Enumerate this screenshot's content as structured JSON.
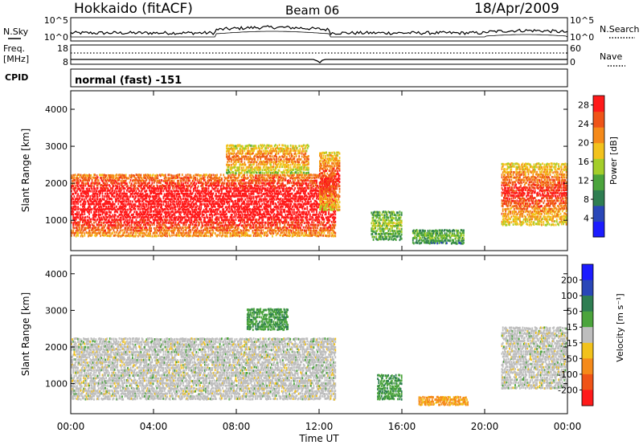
{
  "header": {
    "title": "Hokkaido (fitACF)",
    "beam": "Beam 06",
    "date": "18/Apr/2009"
  },
  "top_panels": {
    "nsky_label": "N.Sky",
    "nsearch_label": "N.Search",
    "noise_ticks": [
      "10^5",
      "10^0"
    ],
    "freq_label": "Freq.",
    "freq_unit": "[MHz]",
    "freq_ticks": [
      "18",
      "8"
    ],
    "nave_label": "Nave",
    "nave_ticks": [
      "60",
      "0"
    ],
    "cpid_label": "CPID",
    "cpid_text": "normal (fast) -151"
  },
  "chart_data": [
    {
      "type": "heatmap",
      "name": "power-panel",
      "xlabel": "",
      "ylabel": "Slant Range [km]",
      "x_ticks": [
        "00:00",
        "04:00",
        "08:00",
        "12:00",
        "16:00",
        "20:00",
        "00:00"
      ],
      "xlim_hours": [
        0,
        24
      ],
      "ylim_km": [
        180,
        4500
      ],
      "y_ticks": [
        1000,
        2000,
        3000,
        4000
      ],
      "colorbar": {
        "label": "Power [dB]",
        "ticks": [
          4,
          8,
          12,
          16,
          20,
          24,
          28
        ],
        "range": [
          0,
          30
        ],
        "colors": [
          "#1c1cff",
          "#2a47b8",
          "#2f7e52",
          "#4ba43c",
          "#a4ce2a",
          "#f2c21c",
          "#f58a1a",
          "#ef5418",
          "#ff1a1a"
        ]
      },
      "regions": [
        {
          "hours": [
            0.0,
            12.8
          ],
          "range_km": [
            600,
            2300
          ],
          "level": 0.75
        },
        {
          "hours": [
            7.5,
            11.5
          ],
          "range_km": [
            2300,
            3100
          ],
          "level": 0.45
        },
        {
          "hours": [
            12.0,
            13.0
          ],
          "range_km": [
            1300,
            2900
          ],
          "level": 0.55
        },
        {
          "hours": [
            14.5,
            16.0
          ],
          "range_km": [
            500,
            1300
          ],
          "level": 0.25
        },
        {
          "hours": [
            16.5,
            19.0
          ],
          "range_km": [
            400,
            800
          ],
          "level": 0.2
        },
        {
          "hours": [
            20.8,
            24.0
          ],
          "range_km": [
            900,
            2600
          ],
          "level": 0.55
        }
      ]
    },
    {
      "type": "heatmap",
      "name": "velocity-panel",
      "xlabel": "Time UT",
      "ylabel": "Slant Range [km]",
      "x_ticks": [
        "00:00",
        "04:00",
        "08:00",
        "12:00",
        "16:00",
        "20:00",
        "00:00"
      ],
      "xlim_hours": [
        0,
        24
      ],
      "ylim_km": [
        180,
        4500
      ],
      "y_ticks": [
        1000,
        2000,
        3000,
        4000
      ],
      "colorbar": {
        "label": "Velocity [m s⁻¹]",
        "ticks": [
          200,
          100,
          50,
          15,
          -15,
          -50,
          -100,
          -200
        ],
        "colors": [
          "#1c1cff",
          "#2a47b8",
          "#2f7e52",
          "#4ba43c",
          "#bebebe",
          "#f2c21c",
          "#f58a1a",
          "#ef5418",
          "#ff1a1a"
        ]
      },
      "regions": [
        {
          "hours": [
            0.0,
            12.8
          ],
          "range_km": [
            600,
            2300
          ],
          "class": "ground"
        },
        {
          "hours": [
            8.5,
            10.5
          ],
          "range_km": [
            2500,
            3100
          ],
          "class": "toward"
        },
        {
          "hours": [
            14.8,
            16.0
          ],
          "range_km": [
            600,
            1300
          ],
          "class": "toward"
        },
        {
          "hours": [
            16.8,
            19.2
          ],
          "range_km": [
            450,
            700
          ],
          "class": "away"
        },
        {
          "hours": [
            20.8,
            24.0
          ],
          "range_km": [
            900,
            2600
          ],
          "class": "ground"
        }
      ]
    }
  ]
}
